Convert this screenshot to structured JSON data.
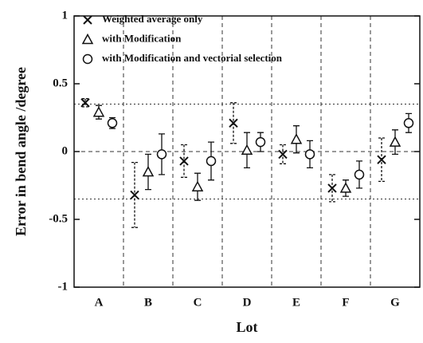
{
  "chart_data": {
    "type": "errorbar",
    "x_label": "Lot",
    "y_label": "Error in bend angle /degree",
    "categories": [
      "A",
      "B",
      "C",
      "D",
      "E",
      "F",
      "G"
    ],
    "series": [
      {
        "name": "Weighted average only",
        "marker": "x",
        "color": "#111111",
        "values": [
          0.36,
          -0.32,
          -0.07,
          0.21,
          -0.02,
          -0.27,
          -0.06
        ],
        "errors": [
          0.03,
          0.24,
          0.12,
          0.15,
          0.07,
          0.1,
          0.16
        ]
      },
      {
        "name": "with Modification",
        "marker": "triangle",
        "color": "#111111",
        "values": [
          0.29,
          -0.15,
          -0.26,
          0.01,
          0.09,
          -0.27,
          0.07
        ],
        "errors": [
          0.05,
          0.13,
          0.1,
          0.13,
          0.1,
          0.06,
          0.09
        ]
      },
      {
        "name": "with Modification and vectorial selection",
        "marker": "circle",
        "color": "#111111",
        "values": [
          0.21,
          -0.02,
          -0.07,
          0.07,
          -0.02,
          -0.17,
          0.21
        ],
        "errors": [
          0.04,
          0.15,
          0.14,
          0.07,
          0.1,
          0.1,
          0.07
        ]
      }
    ],
    "ylim": [
      -1,
      1
    ],
    "yticks": [
      -1,
      -0.5,
      0,
      0.5,
      1
    ],
    "reference_lines": [
      0.35,
      0,
      -0.35
    ],
    "legend": "upper left"
  }
}
